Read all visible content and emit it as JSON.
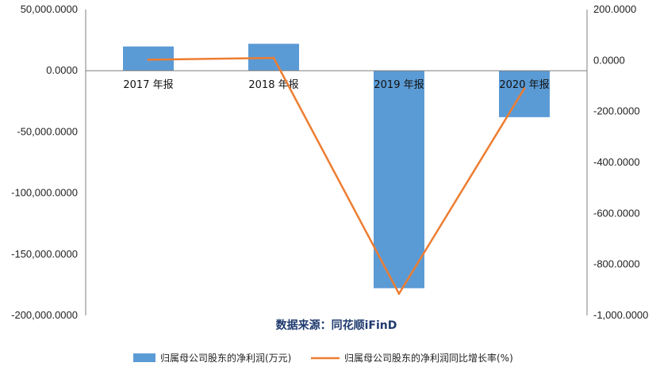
{
  "chart_data": {
    "type": "bar",
    "categories": [
      "2017 年报",
      "2018 年报",
      "2019 年报",
      "2020 年报"
    ],
    "series": [
      {
        "name": "归属母公司股东的净利润(万元)",
        "type": "bar",
        "axis": "left",
        "color": "#5b9bd5",
        "values": [
          19800,
          22000,
          -177800,
          -38000
        ]
      },
      {
        "name": "归属母公司股东的净利润同比增长率(%)",
        "type": "line",
        "axis": "right",
        "color": "#ed7d31",
        "values": [
          3,
          10,
          -915,
          -110
        ]
      }
    ],
    "y_left": {
      "ylim": [
        -200000,
        50000
      ],
      "ticks": [
        50000,
        0,
        -50000,
        -100000,
        -150000,
        -200000
      ],
      "tick_labels": [
        "50,000.0000",
        "0.0000",
        "-50,000.0000",
        "-100,000.0000",
        "-150,000.0000",
        "-200,000.0000"
      ]
    },
    "y_right": {
      "ylim": [
        -1000,
        200
      ],
      "ticks": [
        200,
        0,
        -200,
        -400,
        -600,
        -800,
        -1000
      ],
      "tick_labels": [
        "200.0000",
        "0.0000",
        "-200.0000",
        "-400.0000",
        "-600.0000",
        "-800.0000",
        "-1,000.0000"
      ]
    },
    "grid": false,
    "legend_position": "bottom",
    "source_text": "数据来源：同花顺iFinD"
  }
}
